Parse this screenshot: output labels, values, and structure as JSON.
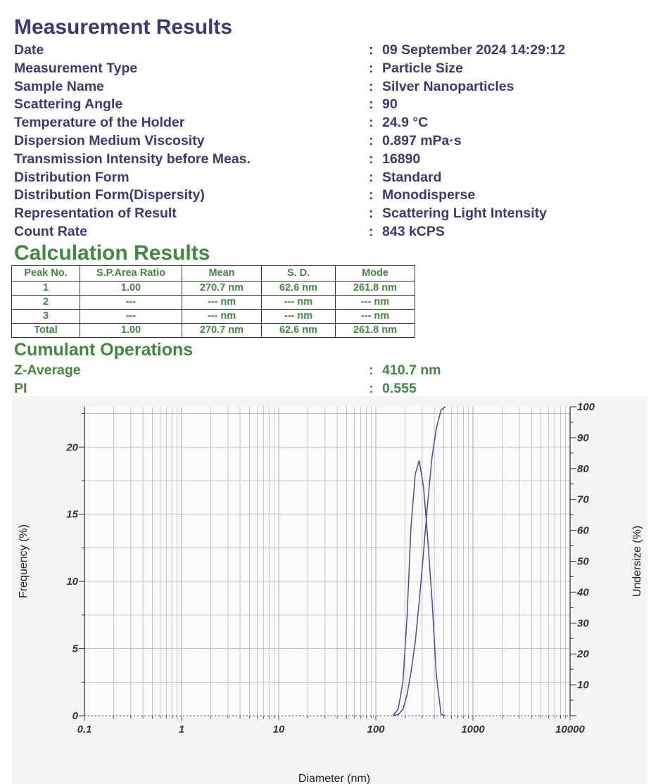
{
  "measurement": {
    "title": "Measurement Results",
    "rows": [
      {
        "label": "Date",
        "value": "09 September 2024 14:29:12"
      },
      {
        "label": "Measurement Type",
        "value": "Particle Size"
      },
      {
        "label": "Sample Name",
        "value": "Silver Nanoparticles"
      },
      {
        "label": "Scattering Angle",
        "value": "90"
      },
      {
        "label": "Temperature of the Holder",
        "value": "24.9 °C"
      },
      {
        "label": "Dispersion Medium Viscosity",
        "value": "0.897 mPa·s"
      },
      {
        "label": "Transmission Intensity before Meas.",
        "value": "16890"
      },
      {
        "label": "Distribution Form",
        "value": "Standard"
      },
      {
        "label": "Distribution Form(Dispersity)",
        "value": "Monodisperse"
      },
      {
        "label": "Representation of Result",
        "value": "Scattering Light Intensity"
      },
      {
        "label": "Count Rate",
        "value": "843 kCPS"
      }
    ]
  },
  "calculation": {
    "title": "Calculation Results",
    "headers": [
      "Peak No.",
      "S.P.Area Ratio",
      "Mean",
      "S. D.",
      "Mode"
    ],
    "rows": [
      [
        "1",
        "1.00",
        "270.7 nm",
        "62.6 nm",
        "261.8 nm"
      ],
      [
        "2",
        "---",
        "--- nm",
        "--- nm",
        "--- nm"
      ],
      [
        "3",
        "---",
        "--- nm",
        "--- nm",
        "--- nm"
      ],
      [
        "Total",
        "1.00",
        "270.7 nm",
        "62.6 nm",
        "261.8 nm"
      ]
    ]
  },
  "cumulant": {
    "title": "Cumulant Operations",
    "z_average": {
      "label": "Z-Average",
      "value": "410.7 nm"
    },
    "pi": {
      "label": "PI",
      "value": "0.555"
    }
  },
  "colors": {
    "heading_blue": "#3b3a78",
    "heading_green": "#3f8a3f",
    "curve": "#4848a8",
    "grid": "#b8b8b8"
  },
  "chart_data": {
    "type": "line",
    "xlabel": "Diameter (nm)",
    "ylabel": "Frequency (%)",
    "y2label": "Undersize (%)",
    "xscale": "log",
    "xlim": [
      0.1,
      10000
    ],
    "ylim": [
      0,
      23
    ],
    "y2lim": [
      0,
      100
    ],
    "x_ticks": [
      "0.1",
      "1",
      "10",
      "100",
      "1000",
      "10000"
    ],
    "y_ticks": [
      "0",
      "5",
      "10",
      "15",
      "20"
    ],
    "y2_ticks": [
      "10",
      "20",
      "30",
      "40",
      "50",
      "60",
      "70",
      "80",
      "90",
      "100"
    ],
    "grid": true,
    "series": [
      {
        "axis": "left",
        "x": [
          150,
          170,
          190,
          210,
          230,
          255,
          280,
          310,
          340,
          380,
          420,
          470,
          520
        ],
        "y": [
          0.0,
          0.5,
          2.5,
          7.5,
          14.0,
          18.0,
          19.0,
          17.0,
          13.5,
          8.5,
          3.0,
          0.1,
          0.0
        ]
      },
      {
        "axis": "right",
        "x": [
          150,
          170,
          190,
          210,
          230,
          255,
          280,
          310,
          340,
          380,
          420,
          470,
          520
        ],
        "y": [
          0.0,
          0.4,
          2.0,
          7.0,
          14.0,
          24.0,
          37.0,
          53.0,
          68.0,
          84.0,
          93.0,
          99.0,
          100.0
        ]
      }
    ]
  }
}
